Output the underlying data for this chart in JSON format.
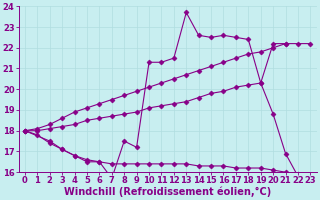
{
  "background_color": "#c8eef0",
  "grid_color": "#b0dde0",
  "line_color": "#880088",
  "marker_style": "D",
  "marker_size": 2.5,
  "line_width": 0.8,
  "xlim": [
    -0.5,
    23.5
  ],
  "ylim": [
    16,
    24
  ],
  "yticks": [
    16,
    17,
    18,
    19,
    20,
    21,
    22,
    23,
    24
  ],
  "xticks": [
    0,
    1,
    2,
    3,
    4,
    5,
    6,
    7,
    8,
    9,
    10,
    11,
    12,
    13,
    14,
    15,
    16,
    17,
    18,
    19,
    20,
    21,
    22,
    23
  ],
  "xlabel": "Windchill (Refroidissement éolien,°C)",
  "xlabel_fontsize": 7.0,
  "tick_fontsize": 6.0,
  "series": [
    {
      "x": [
        0,
        1,
        2,
        3,
        4,
        5,
        6,
        7,
        8,
        9,
        10,
        11,
        12,
        13,
        14,
        15,
        16,
        17,
        18,
        19,
        20,
        21
      ],
      "y": [
        18.0,
        17.8,
        17.4,
        17.1,
        16.8,
        16.5,
        16.5,
        15.7,
        17.5,
        17.2,
        21.3,
        21.3,
        21.5,
        23.7,
        22.6,
        22.5,
        22.6,
        22.5,
        22.4,
        20.3,
        22.2,
        22.2
      ]
    },
    {
      "x": [
        0,
        2,
        3,
        4,
        5,
        6,
        7,
        8,
        9,
        10,
        11,
        12,
        13,
        14,
        15,
        16,
        17,
        18,
        19,
        20,
        21,
        22,
        23
      ],
      "y": [
        18.0,
        17.5,
        17.1,
        16.8,
        16.6,
        16.5,
        16.4,
        16.4,
        16.4,
        16.4,
        16.4,
        16.4,
        16.4,
        16.3,
        16.3,
        16.3,
        16.2,
        16.2,
        16.2,
        16.1,
        16.0,
        15.9,
        15.8
      ]
    },
    {
      "x": [
        0,
        1,
        2,
        3,
        4,
        5,
        6,
        7,
        8,
        9,
        10,
        11,
        12,
        13,
        14,
        15,
        16,
        17,
        18,
        19,
        20,
        21,
        22,
        23
      ],
      "y": [
        18.0,
        18.1,
        18.3,
        18.6,
        18.9,
        19.1,
        19.3,
        19.5,
        19.7,
        19.9,
        20.1,
        20.3,
        20.5,
        20.7,
        20.9,
        21.1,
        21.3,
        21.5,
        21.7,
        21.8,
        22.0,
        22.2,
        22.2,
        22.2
      ]
    },
    {
      "x": [
        0,
        1,
        2,
        3,
        4,
        5,
        6,
        7,
        8,
        9,
        10,
        11,
        12,
        13,
        14,
        15,
        16,
        17,
        18,
        19,
        20,
        21,
        22,
        23
      ],
      "y": [
        18.0,
        18.0,
        18.1,
        18.2,
        18.3,
        18.5,
        18.6,
        18.7,
        18.8,
        18.9,
        19.1,
        19.2,
        19.3,
        19.4,
        19.6,
        19.8,
        19.9,
        20.1,
        20.2,
        20.3,
        18.8,
        16.9,
        15.8,
        null
      ]
    }
  ]
}
